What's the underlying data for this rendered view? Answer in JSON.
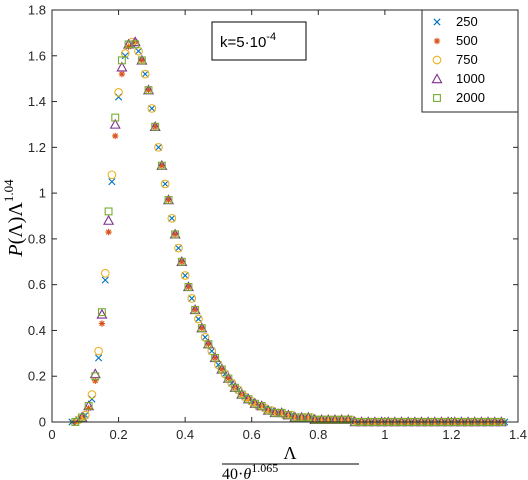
{
  "chart_data": {
    "type": "scatter",
    "title": "",
    "xlabel": {
      "numerator": "Λ",
      "denominator_base": "40·θ",
      "denominator_exponent": "1.065"
    },
    "ylabel": {
      "base": "P(Λ)Λ",
      "exponent": "1.04"
    },
    "xlim": [
      0,
      1.4
    ],
    "ylim": [
      0,
      1.8
    ],
    "xticks": [
      "0",
      "0.2",
      "0.4",
      "0.6",
      "0.8",
      "1",
      "1.2",
      "1.4"
    ],
    "yticks": [
      "0",
      "0.2",
      "0.4",
      "0.6",
      "0.8",
      "1",
      "1.2",
      "1.4",
      "1.6",
      "1.8"
    ],
    "annotation": {
      "prefix": "k=5·10",
      "exponent": "-4"
    },
    "legend_position": "top-right",
    "series": [
      {
        "name": "250",
        "marker": "x",
        "color": "#0072bd",
        "x": [
          0.06,
          0.08,
          0.1,
          0.12,
          0.14,
          0.16,
          0.18,
          0.2,
          0.22,
          0.24,
          0.26,
          0.28,
          0.3,
          0.32,
          0.34,
          0.36,
          0.38,
          0.4,
          0.42,
          0.44,
          0.46,
          0.48,
          0.5,
          0.52,
          0.54,
          0.56,
          0.58,
          0.6,
          0.62,
          0.64,
          0.66,
          0.68,
          0.7,
          0.72,
          0.74,
          0.76,
          0.78,
          0.8,
          0.82,
          0.84,
          0.86,
          0.88,
          0.9,
          0.92,
          0.94,
          0.96,
          0.98,
          1.0,
          1.02,
          1.04,
          1.06,
          1.08,
          1.1,
          1.12,
          1.14,
          1.16,
          1.18,
          1.2,
          1.22,
          1.24,
          1.26,
          1.28,
          1.3,
          1.32,
          1.34,
          1.36
        ],
        "y": [
          0.0,
          0.01,
          0.03,
          0.1,
          0.28,
          0.62,
          1.05,
          1.42,
          1.6,
          1.65,
          1.62,
          1.52,
          1.37,
          1.2,
          1.04,
          0.89,
          0.76,
          0.64,
          0.54,
          0.45,
          0.37,
          0.31,
          0.25,
          0.21,
          0.17,
          0.14,
          0.11,
          0.09,
          0.07,
          0.06,
          0.05,
          0.04,
          0.03,
          0.03,
          0.02,
          0.02,
          0.02,
          0.01,
          0.01,
          0.01,
          0.01,
          0.01,
          0.01,
          0.0,
          0.0,
          0.0,
          0.0,
          0.0,
          0.0,
          0.0,
          0.0,
          0.0,
          0.0,
          0.0,
          0.0,
          0.0,
          0.0,
          0.0,
          0.0,
          0.0,
          0.0,
          0.0,
          0.0,
          0.0,
          0.0,
          0.0
        ]
      },
      {
        "name": "500",
        "marker": "*",
        "color": "#d95319",
        "x": [
          0.07,
          0.09,
          0.11,
          0.13,
          0.15,
          0.17,
          0.19,
          0.21,
          0.23,
          0.25,
          0.27,
          0.29,
          0.31,
          0.33,
          0.35,
          0.37,
          0.39,
          0.41,
          0.43,
          0.45,
          0.47,
          0.49,
          0.51,
          0.53,
          0.55,
          0.57,
          0.59,
          0.61,
          0.63,
          0.65,
          0.67,
          0.69,
          0.71,
          0.73,
          0.75,
          0.77,
          0.79,
          0.81,
          0.83,
          0.85,
          0.87,
          0.89,
          0.91,
          0.93,
          0.95,
          0.97,
          0.99,
          1.01,
          1.03,
          1.05,
          1.07,
          1.09,
          1.11,
          1.13,
          1.15,
          1.17,
          1.19,
          1.21,
          1.23,
          1.25,
          1.27,
          1.29,
          1.31,
          1.33,
          1.35
        ],
        "y": [
          0.0,
          0.02,
          0.06,
          0.18,
          0.43,
          0.83,
          1.25,
          1.52,
          1.64,
          1.66,
          1.58,
          1.45,
          1.29,
          1.12,
          0.97,
          0.82,
          0.7,
          0.59,
          0.49,
          0.41,
          0.34,
          0.28,
          0.23,
          0.19,
          0.15,
          0.12,
          0.1,
          0.08,
          0.07,
          0.05,
          0.04,
          0.04,
          0.03,
          0.02,
          0.02,
          0.02,
          0.01,
          0.01,
          0.01,
          0.01,
          0.01,
          0.01,
          0.0,
          0.0,
          0.0,
          0.0,
          0.0,
          0.0,
          0.0,
          0.0,
          0.0,
          0.0,
          0.0,
          0.0,
          0.0,
          0.0,
          0.0,
          0.0,
          0.0,
          0.0,
          0.0,
          0.0,
          0.0,
          0.0,
          0.0
        ]
      },
      {
        "name": "750",
        "marker": "o",
        "color": "#edb120",
        "x": [
          0.08,
          0.1,
          0.12,
          0.14,
          0.16,
          0.18,
          0.2,
          0.22,
          0.24,
          0.26,
          0.28,
          0.3,
          0.32,
          0.34,
          0.36,
          0.38,
          0.4,
          0.42,
          0.44,
          0.46,
          0.48,
          0.5,
          0.52,
          0.54,
          0.56,
          0.58,
          0.6,
          0.62,
          0.64,
          0.66,
          0.68,
          0.7,
          0.72,
          0.74,
          0.76,
          0.78,
          0.8,
          0.82,
          0.84,
          0.86,
          0.88,
          0.9,
          0.92,
          0.94,
          0.96,
          0.98,
          1.0,
          1.02,
          1.04,
          1.06,
          1.08,
          1.1,
          1.12,
          1.14,
          1.16,
          1.18,
          1.2,
          1.22,
          1.24,
          1.26,
          1.28,
          1.3,
          1.32,
          1.34
        ],
        "y": [
          0.01,
          0.03,
          0.12,
          0.31,
          0.65,
          1.08,
          1.44,
          1.61,
          1.66,
          1.62,
          1.52,
          1.37,
          1.2,
          1.04,
          0.89,
          0.76,
          0.64,
          0.54,
          0.45,
          0.37,
          0.31,
          0.25,
          0.21,
          0.17,
          0.14,
          0.11,
          0.09,
          0.07,
          0.06,
          0.05,
          0.04,
          0.03,
          0.03,
          0.02,
          0.02,
          0.02,
          0.01,
          0.01,
          0.01,
          0.01,
          0.01,
          0.01,
          0.0,
          0.0,
          0.0,
          0.0,
          0.0,
          0.0,
          0.0,
          0.0,
          0.0,
          0.0,
          0.0,
          0.0,
          0.0,
          0.0,
          0.0,
          0.0,
          0.0,
          0.0,
          0.0,
          0.0,
          0.0,
          0.0
        ]
      },
      {
        "name": "1000",
        "marker": "triangle",
        "color": "#7e2f8e",
        "x": [
          0.09,
          0.11,
          0.13,
          0.15,
          0.17,
          0.19,
          0.21,
          0.23,
          0.25,
          0.27,
          0.29,
          0.31,
          0.33,
          0.35,
          0.37,
          0.39,
          0.41,
          0.43,
          0.45,
          0.47,
          0.49,
          0.51,
          0.53,
          0.55,
          0.57,
          0.59,
          0.61,
          0.63,
          0.65,
          0.67,
          0.69,
          0.71,
          0.73,
          0.75,
          0.77,
          0.79,
          0.81,
          0.83,
          0.85,
          0.87,
          0.89,
          0.91,
          0.93,
          0.95,
          0.97,
          0.99,
          1.01,
          1.03,
          1.05,
          1.07,
          1.09,
          1.11,
          1.13,
          1.15,
          1.17,
          1.19,
          1.21,
          1.23,
          1.25,
          1.27,
          1.29,
          1.31,
          1.33,
          1.35
        ],
        "y": [
          0.02,
          0.07,
          0.21,
          0.47,
          0.88,
          1.3,
          1.55,
          1.65,
          1.66,
          1.58,
          1.45,
          1.29,
          1.12,
          0.97,
          0.82,
          0.7,
          0.59,
          0.49,
          0.41,
          0.34,
          0.28,
          0.23,
          0.19,
          0.15,
          0.12,
          0.1,
          0.08,
          0.07,
          0.05,
          0.04,
          0.04,
          0.03,
          0.02,
          0.02,
          0.02,
          0.01,
          0.01,
          0.01,
          0.01,
          0.01,
          0.01,
          0.0,
          0.0,
          0.0,
          0.0,
          0.0,
          0.0,
          0.0,
          0.0,
          0.0,
          0.0,
          0.0,
          0.0,
          0.0,
          0.0,
          0.0,
          0.0,
          0.0,
          0.0,
          0.0,
          0.0,
          0.0,
          0.0,
          0.0
        ]
      },
      {
        "name": "2000",
        "marker": "square",
        "color": "#77ac30",
        "x": [
          0.07,
          0.09,
          0.11,
          0.13,
          0.15,
          0.17,
          0.19,
          0.21,
          0.23,
          0.25,
          0.27,
          0.29,
          0.31,
          0.33,
          0.35,
          0.37,
          0.39,
          0.41,
          0.43,
          0.45,
          0.47,
          0.49,
          0.51,
          0.53,
          0.55,
          0.57,
          0.59,
          0.61,
          0.63,
          0.65,
          0.67,
          0.69,
          0.71,
          0.73,
          0.75,
          0.77,
          0.79,
          0.81,
          0.83,
          0.85,
          0.87,
          0.89,
          0.91,
          0.93,
          0.95,
          0.97,
          0.99,
          1.01,
          1.03,
          1.05,
          1.07,
          1.09,
          1.11,
          1.13,
          1.15,
          1.17,
          1.19,
          1.21,
          1.23,
          1.25,
          1.27,
          1.29,
          1.31,
          1.33,
          1.35
        ],
        "y": [
          0.0,
          0.02,
          0.07,
          0.2,
          0.48,
          0.92,
          1.33,
          1.58,
          1.65,
          1.65,
          1.58,
          1.45,
          1.29,
          1.12,
          0.97,
          0.82,
          0.7,
          0.59,
          0.49,
          0.41,
          0.34,
          0.28,
          0.23,
          0.19,
          0.15,
          0.12,
          0.1,
          0.08,
          0.07,
          0.05,
          0.04,
          0.04,
          0.03,
          0.02,
          0.02,
          0.02,
          0.01,
          0.01,
          0.01,
          0.01,
          0.01,
          0.01,
          0.0,
          0.0,
          0.0,
          0.0,
          0.0,
          0.0,
          0.0,
          0.0,
          0.0,
          0.0,
          0.0,
          0.0,
          0.0,
          0.0,
          0.0,
          0.0,
          0.0,
          0.0,
          0.0,
          0.0,
          0.0,
          0.0,
          0.0
        ]
      }
    ]
  }
}
